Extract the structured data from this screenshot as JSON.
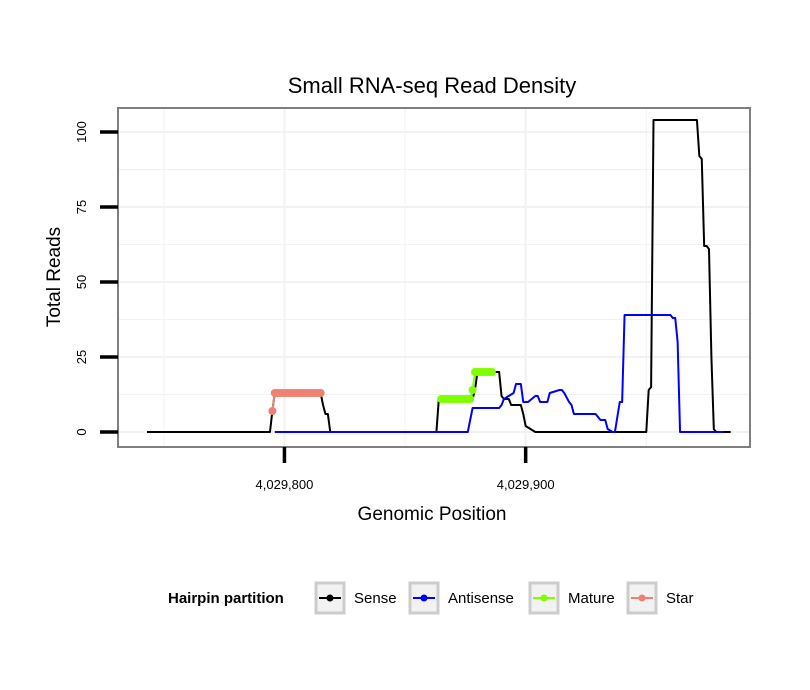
{
  "chart_data": {
    "type": "line",
    "title": "Small RNA-seq Read Density",
    "xlabel": "Genomic Position",
    "ylabel": "Total Reads",
    "xlim": [
      4029731,
      4029993
    ],
    "ylim": [
      -5,
      108
    ],
    "x_ticks": [
      {
        "value": 4029800,
        "label": "4,029,800"
      },
      {
        "value": 4029900,
        "label": "4,029,900"
      }
    ],
    "y_ticks": [
      {
        "value": 0,
        "label": "0"
      },
      {
        "value": 25,
        "label": "25"
      },
      {
        "value": 50,
        "label": "50"
      },
      {
        "value": 75,
        "label": "75"
      },
      {
        "value": 100,
        "label": "100"
      }
    ],
    "grid": true,
    "legend": {
      "title": "Hairpin partition",
      "position": "bottom",
      "entries": [
        "Sense",
        "Antisense",
        "Mature",
        "Star"
      ]
    },
    "series": [
      {
        "name": "Sense",
        "color": "#000000",
        "markers": false,
        "x": [
          4029743,
          4029794,
          4029795,
          4029796,
          4029815,
          4029816,
          4029817,
          4029818,
          4029819,
          4029863,
          4029864,
          4029878,
          4029879,
          4029880,
          4029889,
          4029890,
          4029891,
          4029893,
          4029894,
          4029898,
          4029899,
          4029900,
          4029904,
          4029950,
          4029951,
          4029952,
          4029953,
          4029971,
          4029972,
          4029973,
          4029974,
          4029975,
          4029976,
          4029977,
          4029978,
          4029979,
          4029980,
          4029983,
          4029985
        ],
        "values": [
          0,
          0,
          7,
          13,
          13,
          9,
          6,
          6,
          0,
          0,
          11,
          11,
          14,
          20,
          20,
          12,
          11,
          11,
          9,
          9,
          6,
          2,
          0,
          0,
          14,
          15,
          104,
          104,
          92,
          91,
          62,
          62,
          61,
          25,
          1,
          0,
          0,
          0,
          0
        ]
      },
      {
        "name": "Antisense",
        "color": "#0000ff",
        "markers": false,
        "x": [
          4029796,
          4029818,
          4029873,
          4029876,
          4029877,
          4029878,
          4029889,
          4029890,
          4029891,
          4029895,
          4029896,
          4029897,
          4029898,
          4029899,
          4029900,
          4029901,
          4029904,
          4029905,
          4029906,
          4029907,
          4029909,
          4029910,
          4029914,
          4029915,
          4029916,
          4029918,
          4029919,
          4029920,
          4029923,
          4029924,
          4029929,
          4029930,
          4029931,
          4029933,
          4029934,
          4029936,
          4029937,
          4029938,
          4029939,
          4029940,
          4029941,
          4029960,
          4029961,
          4029962,
          4029963,
          4029964,
          4029982
        ],
        "values": [
          0,
          0,
          0,
          0,
          4,
          8,
          8,
          9,
          11,
          13,
          16,
          16,
          16,
          10,
          10,
          10,
          12,
          12,
          10,
          10,
          10,
          13,
          14,
          14,
          13,
          10,
          9,
          6,
          6,
          6,
          6,
          5,
          4,
          4,
          1,
          0,
          0,
          5,
          10,
          10,
          39,
          39,
          38,
          38,
          30,
          0,
          0
        ]
      },
      {
        "name": "Mature",
        "color": "#7fff00",
        "markers": true,
        "x": [
          4029865,
          4029866,
          4029867,
          4029868,
          4029869,
          4029870,
          4029871,
          4029872,
          4029873,
          4029874,
          4029875,
          4029876,
          4029877,
          4029878,
          4029879,
          4029880,
          4029881,
          4029882,
          4029883,
          4029884,
          4029885,
          4029886
        ],
        "values": [
          11,
          11,
          11,
          11,
          11,
          11,
          11,
          11,
          11,
          11,
          11,
          11,
          11,
          14,
          20,
          20,
          20,
          20,
          20,
          20,
          20,
          20
        ]
      },
      {
        "name": "Star",
        "color": "#f08070",
        "markers": true,
        "x": [
          4029795,
          4029796,
          4029797,
          4029798,
          4029799,
          4029800,
          4029801,
          4029802,
          4029803,
          4029804,
          4029805,
          4029806,
          4029807,
          4029808,
          4029809,
          4029810,
          4029811,
          4029812,
          4029813,
          4029814,
          4029815
        ],
        "values": [
          7,
          13,
          13,
          13,
          13,
          13,
          13,
          13,
          13,
          13,
          13,
          13,
          13,
          13,
          13,
          13,
          13,
          13,
          13,
          13,
          13
        ]
      }
    ]
  }
}
